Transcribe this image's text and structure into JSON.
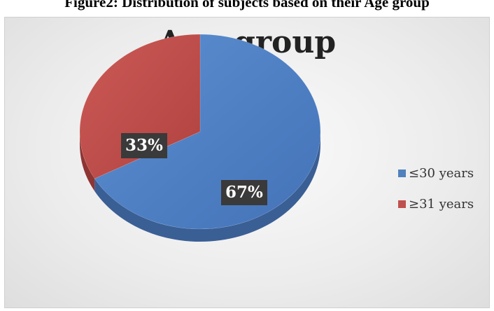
{
  "caption": "Figure2: Distribution of subjects based on their Age group",
  "chart_data": {
    "type": "pie",
    "title": "Age group",
    "categories": [
      "≤30 years",
      "≥31 years"
    ],
    "values": [
      67,
      33
    ],
    "data_labels": [
      "67%",
      "33%"
    ],
    "colors": [
      "#4f81bd",
      "#c0504d"
    ],
    "style": "3d",
    "legend": "right"
  }
}
